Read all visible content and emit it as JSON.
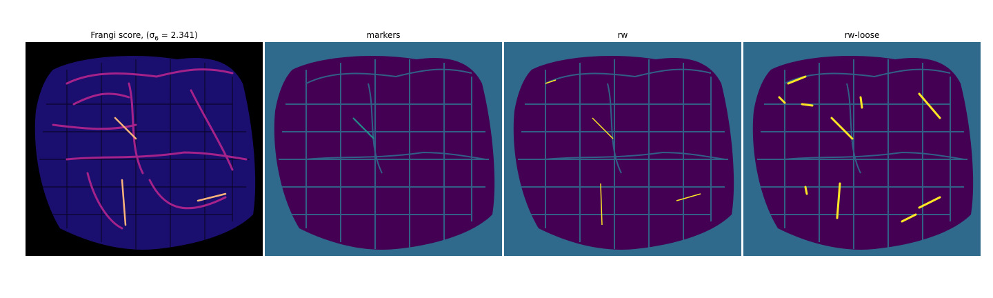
{
  "figure": {
    "panels": [
      {
        "title": "Frangi score, (σ",
        "subscript": "6",
        "title_suffix": " = 2.341)",
        "colormap": "magma",
        "background": "#000000"
      },
      {
        "title": "markers",
        "colormap": "viridis",
        "background": "#2f6a8c"
      },
      {
        "title": "rw",
        "colormap": "viridis",
        "background": "#2f6a8c"
      },
      {
        "title": "rw-loose",
        "colormap": "viridis",
        "background": "#2f6a8c"
      }
    ],
    "colors": {
      "dark_purple": "#440154",
      "teal": "#2f6a8c",
      "yellow": "#fde725",
      "magma_background": "#000000",
      "magma_tissue": "#1a0f6e",
      "magma_vessel": "#a4228a",
      "magma_bright": "#fbb47a"
    }
  }
}
